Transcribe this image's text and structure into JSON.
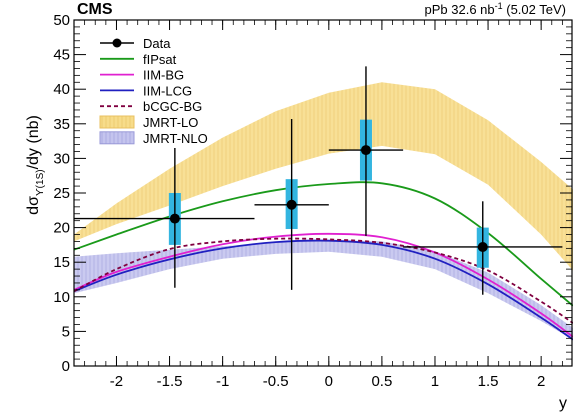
{
  "header": {
    "experiment": "CMS",
    "lumi_prefix": "pPb 32.6 nb",
    "lumi_exp": "-1",
    "lumi_suffix": " (5.02 TeV)"
  },
  "chart_data": {
    "type": "scatter",
    "xlabel": "y",
    "ylabel": {
      "main": "dσ",
      "sub": "ϒ(1S)",
      "tail": "/dy (nb)"
    },
    "xlim": [
      -2.4,
      2.3
    ],
    "ylim": [
      0,
      50
    ],
    "x_ticks": [
      -2,
      -1.5,
      -1,
      -0.5,
      0,
      0.5,
      1,
      1.5,
      2
    ],
    "x_tick_labels": [
      "-2",
      "-1.5",
      "-1",
      "-0.5",
      "0",
      "0.5",
      "1",
      "1.5",
      "2"
    ],
    "y_ticks": [
      0,
      5,
      10,
      15,
      20,
      25,
      30,
      35,
      40,
      45,
      50
    ],
    "y_tick_labels": [
      "0",
      "5",
      "10",
      "15",
      "20",
      "25",
      "30",
      "35",
      "40",
      "45",
      "50"
    ],
    "legend_position": "top-left",
    "legend": [
      {
        "label": "Data",
        "kind": "marker",
        "color": "#000000"
      },
      {
        "label": "fIPsat",
        "kind": "line",
        "color": "#1a9a1a",
        "dash": ""
      },
      {
        "label": "IIM-BG",
        "kind": "line",
        "color": "#e020d0",
        "dash": ""
      },
      {
        "label": "IIM-LCG",
        "kind": "line",
        "color": "#2020c0",
        "dash": ""
      },
      {
        "label": "bCGC-BG",
        "kind": "line",
        "color": "#800040",
        "dash": "4,3"
      },
      {
        "label": "JMRT-LO",
        "kind": "band",
        "color": "#f7dc8a",
        "border": "#e8c060"
      },
      {
        "label": "JMRT-NLO",
        "kind": "band",
        "color": "#c4c4ee",
        "border": "#9a9ad8"
      }
    ],
    "data_points": [
      {
        "x": -1.45,
        "x_low": -2.4,
        "x_high": -0.7,
        "y": 21.3,
        "stat_low": 11.3,
        "stat_high": 31.5,
        "syst_low": 17.5,
        "syst_high": 25.0
      },
      {
        "x": -0.35,
        "x_low": -0.7,
        "x_high": 0.0,
        "y": 23.3,
        "stat_low": 11.0,
        "stat_high": 35.7,
        "syst_low": 19.8,
        "syst_high": 27.0
      },
      {
        "x": 0.35,
        "x_low": 0.0,
        "x_high": 0.7,
        "y": 31.2,
        "stat_low": 18.8,
        "stat_high": 43.3,
        "syst_low": 26.8,
        "syst_high": 35.6
      },
      {
        "x": 1.45,
        "x_low": 0.7,
        "x_high": 2.2,
        "y": 17.2,
        "stat_low": 10.3,
        "stat_high": 23.8,
        "syst_low": 14.2,
        "syst_high": 20.0
      }
    ],
    "series": [
      {
        "name": "fIPsat",
        "color": "#1a9a1a",
        "dash": "",
        "x": [
          -2.4,
          -2.0,
          -1.5,
          -1.0,
          -0.5,
          0.0,
          0.5,
          1.0,
          1.5,
          2.0,
          2.3
        ],
        "y": [
          16.8,
          19.0,
          21.6,
          23.8,
          25.4,
          26.3,
          26.4,
          24.2,
          19.2,
          12.6,
          8.7
        ]
      },
      {
        "name": "IIM-BG",
        "color": "#e020d0",
        "dash": "",
        "x": [
          -2.4,
          -2.0,
          -1.5,
          -1.0,
          -0.5,
          0.0,
          0.5,
          1.0,
          1.5,
          2.0,
          2.3
        ],
        "y": [
          11.0,
          13.6,
          15.8,
          17.6,
          18.7,
          19.1,
          18.6,
          16.4,
          12.5,
          7.6,
          4.2
        ]
      },
      {
        "name": "IIM-LCG",
        "color": "#2020c0",
        "dash": "",
        "x": [
          -2.4,
          -2.0,
          -1.5,
          -1.0,
          -0.5,
          0.0,
          0.5,
          1.0,
          1.5,
          2.0,
          2.3
        ],
        "y": [
          10.8,
          13.2,
          15.4,
          17.0,
          17.9,
          18.1,
          17.5,
          15.5,
          11.8,
          7.0,
          3.8
        ]
      },
      {
        "name": "bCGC-BG",
        "color": "#800040",
        "dash": "4,3",
        "x": [
          -2.4,
          -2.0,
          -1.5,
          -1.0,
          -0.5,
          0.0,
          0.5,
          1.0,
          1.5,
          2.0,
          2.3
        ],
        "y": [
          10.8,
          14.0,
          16.9,
          18.0,
          18.4,
          18.3,
          17.8,
          16.4,
          13.8,
          9.3,
          6.2
        ]
      }
    ],
    "bands": [
      {
        "name": "JMRT-LO",
        "color": "#f7dc8a",
        "border": "#e8c060",
        "x": [
          -2.4,
          -2.0,
          -1.5,
          -1.0,
          -0.5,
          0.0,
          0.5,
          1.0,
          1.5,
          2.0,
          2.3
        ],
        "low": [
          18.0,
          20.5,
          23.2,
          26.0,
          28.5,
          30.7,
          31.8,
          30.6,
          26.2,
          19.0,
          13.8
        ],
        "high": [
          19.0,
          23.5,
          28.5,
          33.0,
          36.8,
          39.5,
          41.0,
          40.0,
          35.5,
          29.5,
          25.5
        ]
      },
      {
        "name": "JMRT-NLO",
        "color": "#c4c4ee",
        "border": "#9a9ad8",
        "x": [
          -2.4,
          -2.0,
          -1.5,
          -1.0,
          -0.5,
          0.0,
          0.5,
          1.0,
          1.5,
          2.0,
          2.3
        ],
        "low": [
          10.5,
          12.0,
          14.0,
          15.5,
          16.2,
          16.5,
          15.8,
          14.0,
          10.5,
          6.5,
          3.8
        ],
        "high": [
          15.8,
          16.3,
          16.8,
          17.3,
          17.8,
          18.2,
          18.0,
          16.6,
          13.5,
          8.8,
          5.5
        ]
      }
    ]
  }
}
